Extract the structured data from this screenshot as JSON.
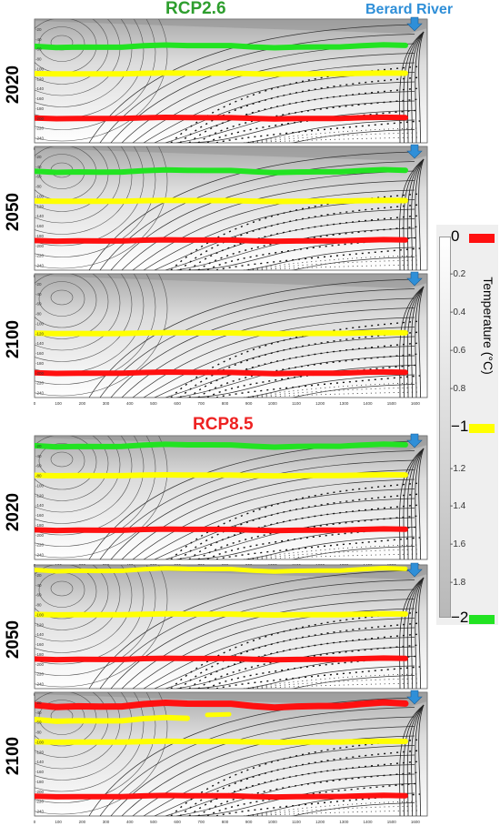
{
  "headers": {
    "rcp26": {
      "text": "RCP2.6",
      "color": "#2e9e2e"
    },
    "rcp85": {
      "text": "RCP8.5",
      "color": "#ee2222"
    },
    "river": {
      "text": "Berard River",
      "color": "#2f8fd8"
    }
  },
  "colors": {
    "green": "#22e322",
    "yellow": "#ffff00",
    "red": "#ff1010",
    "arrow": "#2f8fd8"
  },
  "x_ticks": [
    "0",
    "100",
    "200",
    "300",
    "400",
    "500",
    "600",
    "700",
    "800",
    "900",
    "1000",
    "1100",
    "1200",
    "1300",
    "1400",
    "1500",
    "1600"
  ],
  "y_ticks": [
    "-20",
    "-40",
    "-60",
    "-80",
    "-100",
    "-120",
    "-140",
    "-160",
    "-180",
    "-200",
    "-220",
    "-240"
  ],
  "panels": [
    {
      "year": "2020",
      "scenario": "RCP2.6",
      "iso_0C_depth": -200,
      "iso_minus1C_depth": -110,
      "iso_minus2C_depth": -55
    },
    {
      "year": "2050",
      "scenario": "RCP2.6",
      "iso_0C_depth": -190,
      "iso_minus1C_depth": -110,
      "iso_minus2C_depth": -50
    },
    {
      "year": "2100",
      "scenario": "RCP2.6",
      "iso_0C_depth": -200,
      "iso_minus1C_depth": -120,
      "iso_minus2C_depth": null
    },
    {
      "year": "2020",
      "scenario": "RCP8.5",
      "iso_0C_depth": -190,
      "iso_minus1C_depth": -80,
      "iso_minus2C_depth": -20
    },
    {
      "year": "2050",
      "scenario": "RCP8.5",
      "iso_0C_depth": -190,
      "iso_minus1C_depth": -100,
      "iso_minus1C_shallow_depth": -10,
      "iso_minus2C_depth": null
    },
    {
      "year": "2100",
      "scenario": "RCP8.5",
      "iso_0C_depth": -210,
      "iso_minus1C_depth": -100,
      "iso_minus1C_shallow_depth": -55,
      "iso_minus2C_depth": null
    }
  ],
  "colorbar": {
    "title": "Temperature (°C)",
    "ticks": [
      "-0.2",
      "-0.4",
      "-0.6",
      "-0.8",
      "-1.2",
      "-1.4",
      "-1.6",
      "-1.8"
    ],
    "major": [
      {
        "label": "0",
        "color": "#ff1010"
      },
      {
        "label": "−1",
        "color": "#ffff00"
      },
      {
        "label": "−2",
        "color": "#22e322"
      }
    ]
  }
}
